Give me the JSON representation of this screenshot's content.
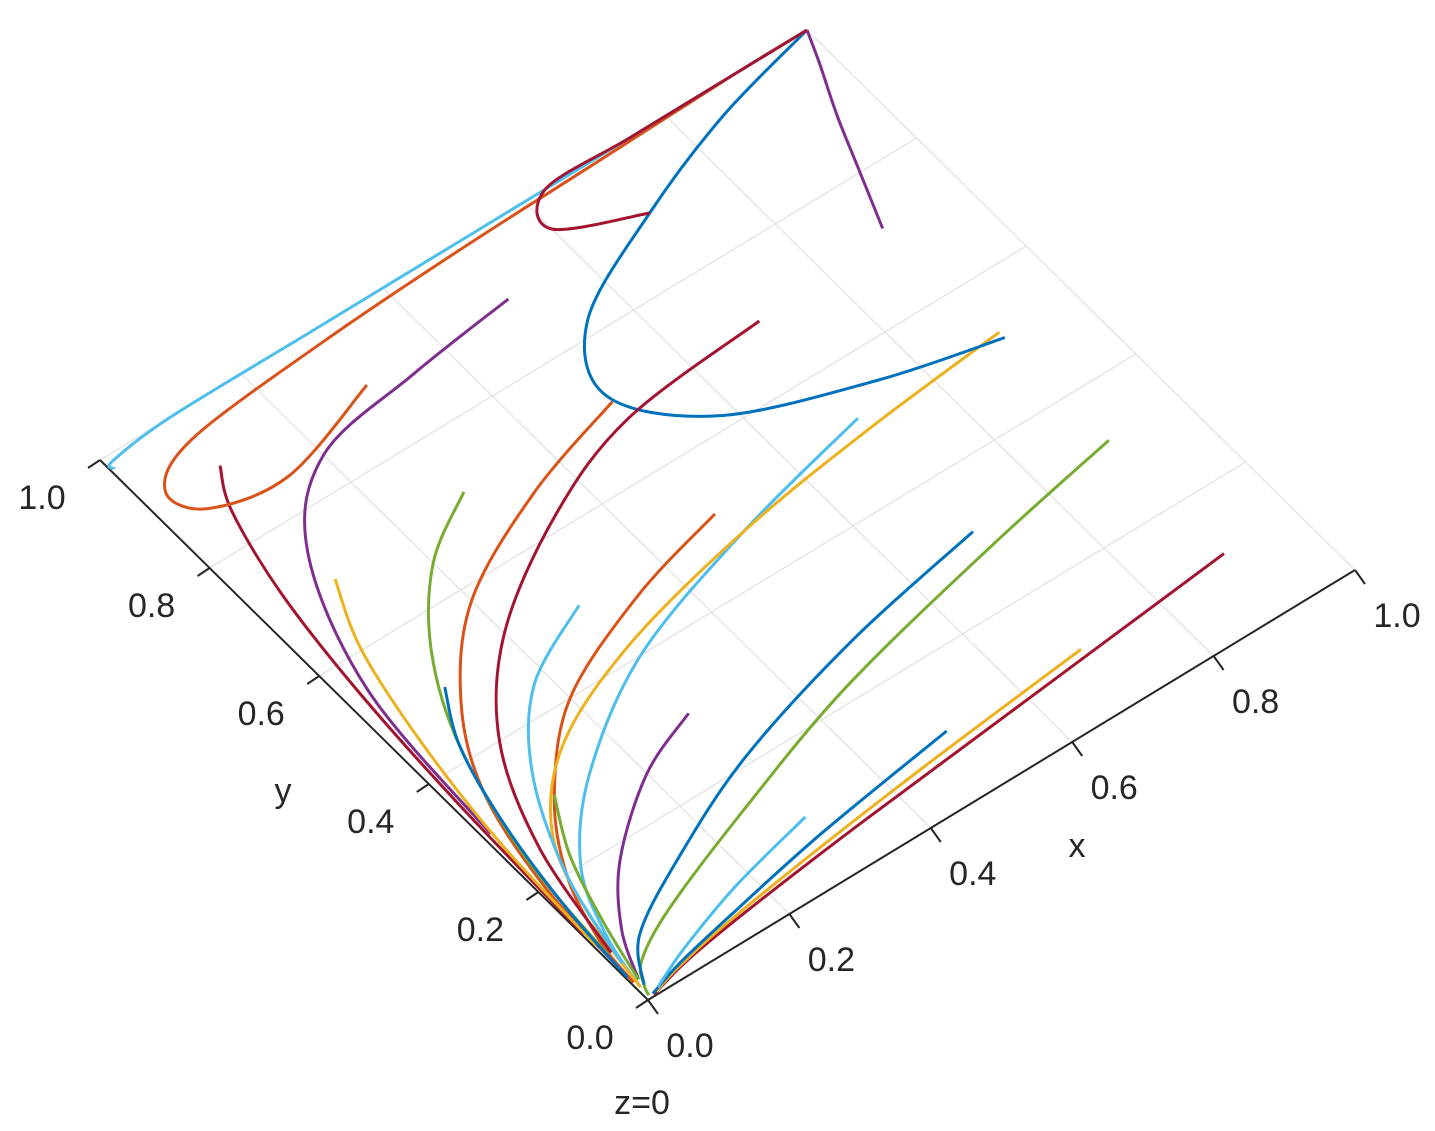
{
  "chart_data": {
    "type": "line",
    "xlabel": "x",
    "ylabel": "y",
    "zlabel": "z=0",
    "xlim": [
      0,
      1
    ],
    "ylim": [
      0,
      1
    ],
    "xticks": [
      {
        "value": 0,
        "label": "0.0"
      },
      0.2,
      0.4,
      0.6,
      0.8,
      {
        "value": 1,
        "label": "1.0"
      }
    ],
    "yticks": [
      {
        "value": 0,
        "label": "0.0"
      },
      0.2,
      0.4,
      0.6,
      0.8,
      {
        "value": 1,
        "label": "1.0"
      }
    ],
    "grid": true,
    "series": [
      {
        "color": "#A2142F",
        "x": [
          0.9,
          0.6,
          0.35,
          0.18,
          0.08,
          0.03,
          0.01
        ],
        "y": [
          0.11,
          0.08,
          0.055,
          0.035,
          0.02,
          0.008,
          0.002
        ]
      },
      {
        "color": "#EDB120",
        "x": [
          0.69,
          0.45,
          0.25,
          0.12,
          0.05,
          0.015
        ],
        "y": [
          0.1,
          0.075,
          0.05,
          0.03,
          0.015,
          0.004
        ]
      },
      {
        "color": "#77AC30",
        "x": [
          0.9,
          0.7,
          0.45,
          0.25,
          0.1,
          0.03,
          0.01,
          0.005
        ],
        "y": [
          0.32,
          0.28,
          0.22,
          0.15,
          0.09,
          0.05,
          0.02,
          0.005
        ]
      },
      {
        "color": "#0072BD",
        "x": [
          0.7,
          0.5,
          0.3,
          0.15,
          0.05,
          0.01
        ],
        "y": [
          0.31,
          0.27,
          0.21,
          0.14,
          0.08,
          0.02
        ]
      },
      {
        "color": "#D95319",
        "x": [
          0.49,
          0.35,
          0.2,
          0.1,
          0.04,
          0.01,
          0.003
        ],
        "y": [
          0.51,
          0.47,
          0.4,
          0.3,
          0.2,
          0.1,
          0.03
        ]
      },
      {
        "color": "#7E2F8E",
        "x": [
          0.29,
          0.2,
          0.1,
          0.04,
          0.01
        ],
        "y": [
          0.3,
          0.26,
          0.18,
          0.1,
          0.03
        ]
      },
      {
        "color": "#4DBEEE",
        "x": [
          0.7,
          0.5,
          0.3,
          0.15,
          0.06,
          0.02,
          0.005
        ],
        "y": [
          0.52,
          0.47,
          0.4,
          0.3,
          0.2,
          0.1,
          0.02
        ]
      },
      {
        "color": "#EDB120",
        "x": [
          0.9,
          0.7,
          0.5,
          0.3,
          0.15,
          0.06,
          0.02,
          0.005
        ],
        "y": [
          0.52,
          0.5,
          0.47,
          0.42,
          0.35,
          0.25,
          0.12,
          0.02
        ]
      },
      {
        "color": "#0072BD",
        "x": [
          0.9,
          0.75,
          0.58,
          0.5,
          0.55,
          0.7,
          0.85,
          1.0
        ],
        "y": [
          0.51,
          0.55,
          0.62,
          0.72,
          0.82,
          0.9,
          0.96,
          1.0
        ]
      },
      {
        "color": "#7E2F8E",
        "x": [
          0.89,
          0.92,
          0.95,
          0.98,
          1.0
        ],
        "y": [
          0.72,
          0.8,
          0.88,
          0.95,
          1.0
        ]
      },
      {
        "color": "#D95319",
        "x": [
          0.5,
          0.35,
          0.2,
          0.1,
          0.04,
          0.01,
          0.003
        ],
        "y": [
          0.71,
          0.66,
          0.58,
          0.47,
          0.35,
          0.2,
          0.05
        ]
      },
      {
        "color": "#77AC30",
        "x": [
          0.29,
          0.2,
          0.12,
          0.06,
          0.02,
          0.005
        ],
        "y": [
          0.71,
          0.65,
          0.55,
          0.42,
          0.25,
          0.08
        ]
      },
      {
        "color": "#A2142F",
        "x": [
          0.1,
          0.07,
          0.04,
          0.02,
          0.008,
          0.002
        ],
        "y": [
          0.91,
          0.85,
          0.72,
          0.55,
          0.35,
          0.12
        ]
      },
      {
        "color": "#D95319",
        "x": [
          0.3,
          0.15,
          0.05,
          0.03,
          0.1,
          0.3,
          0.5,
          0.7,
          0.9,
          1.0
        ],
        "y": [
          0.9,
          0.85,
          0.87,
          0.92,
          0.96,
          0.98,
          0.99,
          0.995,
          1.0,
          1.0
        ]
      },
      {
        "color": "#4DBEEE",
        "x": [
          0.005,
          0.01,
          0.1,
          0.3,
          0.5,
          0.7,
          0.9,
          1.0
        ],
        "y": [
          0.98,
          0.99,
          1.0,
          1.0,
          1.0,
          1.0,
          1.0,
          1.0
        ]
      },
      {
        "color": "#A2142F",
        "x": [
          0.7,
          0.6,
          0.63,
          0.75,
          0.9,
          1.0
        ],
        "y": [
          0.9,
          0.95,
          1.0,
          1.0,
          1.0,
          1.0
        ]
      },
      {
        "color": "#7E2F8E",
        "x": [
          0.5,
          0.35,
          0.2,
          0.1,
          0.03,
          0.01
        ],
        "y": [
          0.9,
          0.88,
          0.85,
          0.75,
          0.55,
          0.3
        ]
      },
      {
        "color": "#EDB120",
        "x": [
          0.1,
          0.06,
          0.03,
          0.01,
          0.003
        ],
        "y": [
          0.7,
          0.6,
          0.45,
          0.28,
          0.1
        ]
      },
      {
        "color": "#0072BD",
        "x": [
          0.1,
          0.06,
          0.03,
          0.01,
          0.002
        ],
        "y": [
          0.5,
          0.42,
          0.3,
          0.16,
          0.04
        ]
      },
      {
        "color": "#4DBEEE",
        "x": [
          0.29,
          0.18,
          0.1,
          0.04,
          0.01
        ],
        "y": [
          0.5,
          0.44,
          0.34,
          0.2,
          0.06
        ]
      },
      {
        "color": "#77AC30",
        "x": [
          0.1,
          0.06,
          0.03,
          0.01
        ],
        "y": [
          0.3,
          0.22,
          0.12,
          0.03
        ]
      },
      {
        "color": "#0072BD",
        "x": [
          0.5,
          0.3,
          0.15,
          0.06,
          0.01
        ],
        "y": [
          0.1,
          0.07,
          0.04,
          0.02,
          0.004
        ]
      },
      {
        "color": "#4DBEEE",
        "x": [
          0.3,
          0.18,
          0.08,
          0.02
        ],
        "y": [
          0.1,
          0.07,
          0.035,
          0.008
        ]
      },
      {
        "color": "#A2142F",
        "x": [
          0.7,
          0.5,
          0.35,
          0.2,
          0.1,
          0.04,
          0.01
        ],
        "y": [
          0.7,
          0.68,
          0.62,
          0.52,
          0.4,
          0.25,
          0.08
        ]
      }
    ]
  }
}
